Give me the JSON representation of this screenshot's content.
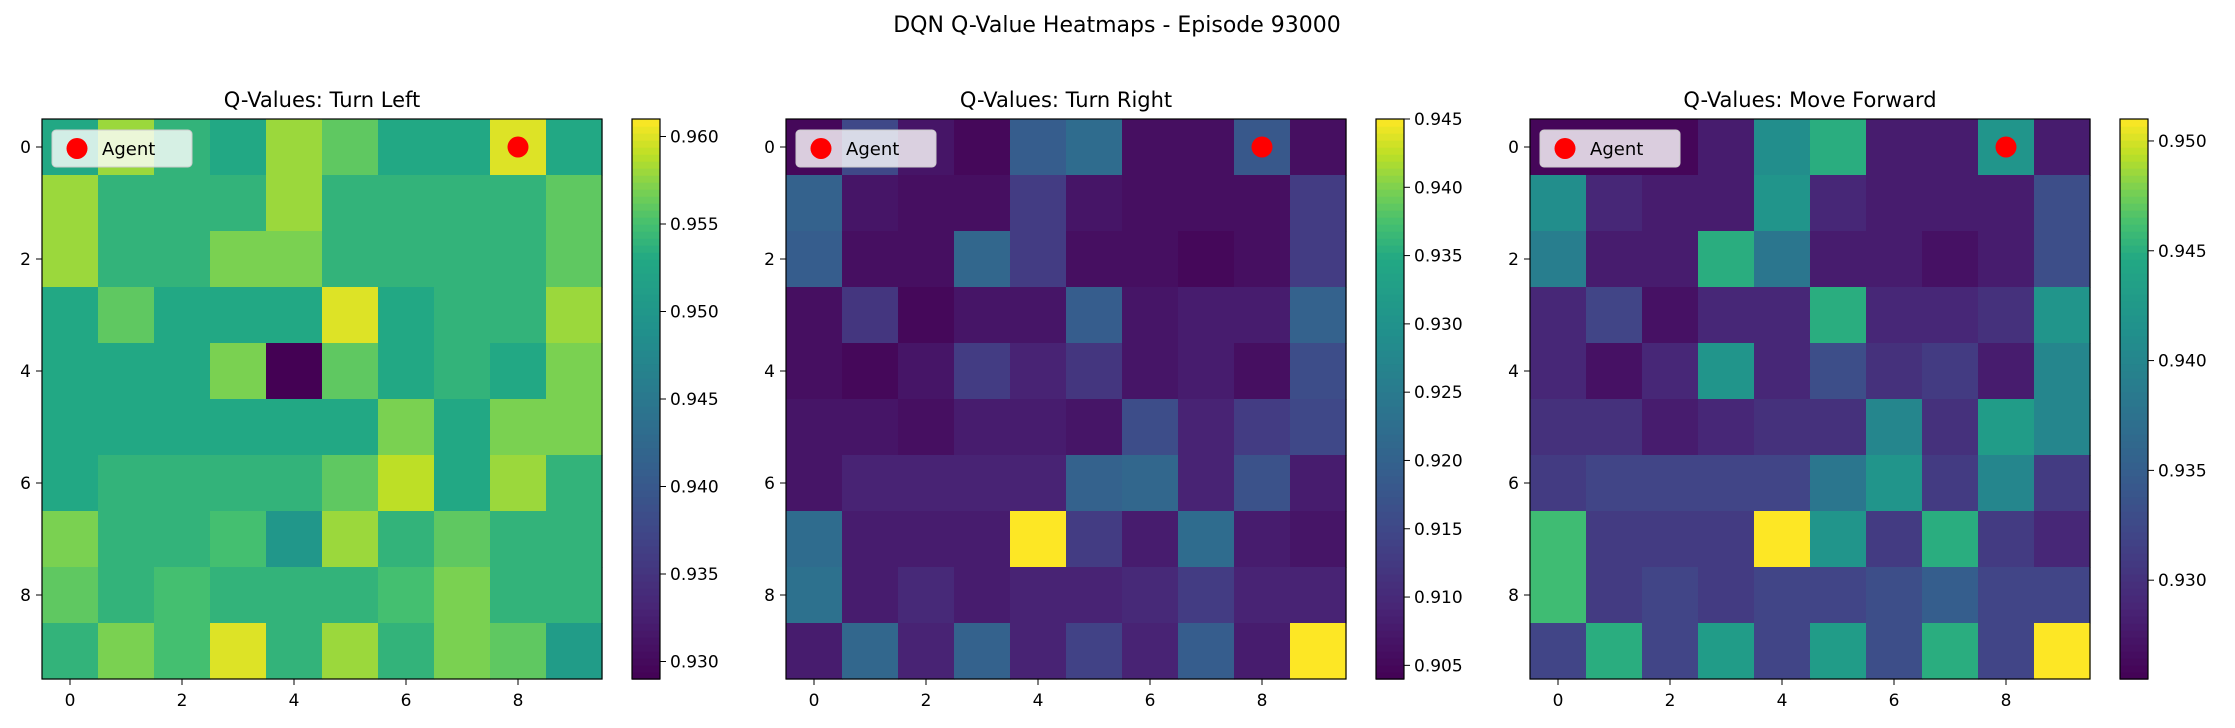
{
  "suptitle": "DQN Q-Value Heatmaps - Episode 93000",
  "colormap": "viridis",
  "agent_color": "#ff0000",
  "legend_location": "upper-left",
  "chart_data": [
    {
      "type": "heatmap",
      "title": "Q-Values: Turn Left",
      "x_ticks": [
        "0",
        "2",
        "4",
        "6",
        "8"
      ],
      "y_ticks": [
        "0",
        "2",
        "4",
        "6",
        "8"
      ],
      "colorbar": {
        "min": 0.929,
        "max": 0.961,
        "ticks": [
          "0.930",
          "0.935",
          "0.940",
          "0.945",
          "0.950",
          "0.955",
          "0.960"
        ]
      },
      "legend": [
        "Agent"
      ],
      "agent": {
        "x": 8,
        "y": 0
      },
      "values": [
        [
          0.953,
          0.958,
          0.954,
          0.953,
          0.958,
          0.956,
          0.953,
          0.953,
          0.96,
          0.953
        ],
        [
          0.958,
          0.954,
          0.954,
          0.954,
          0.958,
          0.954,
          0.954,
          0.954,
          0.954,
          0.956
        ],
        [
          0.958,
          0.954,
          0.954,
          0.957,
          0.957,
          0.954,
          0.954,
          0.954,
          0.954,
          0.956
        ],
        [
          0.953,
          0.956,
          0.953,
          0.953,
          0.953,
          0.96,
          0.953,
          0.954,
          0.954,
          0.958
        ],
        [
          0.953,
          0.953,
          0.953,
          0.957,
          0.929,
          0.956,
          0.953,
          0.954,
          0.953,
          0.957
        ],
        [
          0.953,
          0.953,
          0.953,
          0.953,
          0.953,
          0.953,
          0.957,
          0.953,
          0.957,
          0.957
        ],
        [
          0.953,
          0.954,
          0.954,
          0.954,
          0.954,
          0.956,
          0.959,
          0.953,
          0.958,
          0.954
        ],
        [
          0.957,
          0.954,
          0.954,
          0.955,
          0.95,
          0.958,
          0.954,
          0.956,
          0.954,
          0.954
        ],
        [
          0.956,
          0.954,
          0.955,
          0.954,
          0.954,
          0.954,
          0.955,
          0.957,
          0.954,
          0.954
        ],
        [
          0.954,
          0.957,
          0.955,
          0.96,
          0.954,
          0.958,
          0.954,
          0.957,
          0.956,
          0.951
        ]
      ]
    },
    {
      "type": "heatmap",
      "title": "Q-Values: Turn Right",
      "x_ticks": [
        "0",
        "2",
        "4",
        "6",
        "8"
      ],
      "y_ticks": [
        "0",
        "2",
        "4",
        "6",
        "8"
      ],
      "colorbar": {
        "min": 0.904,
        "max": 0.945,
        "ticks": [
          "0.905",
          "0.910",
          "0.915",
          "0.920",
          "0.925",
          "0.930",
          "0.935",
          "0.940",
          "0.945"
        ]
      },
      "legend": [
        "Agent"
      ],
      "agent": {
        "x": 8,
        "y": 0
      },
      "values": [
        [
          0.905,
          0.915,
          0.907,
          0.905,
          0.919,
          0.922,
          0.906,
          0.906,
          0.918,
          0.906
        ],
        [
          0.92,
          0.907,
          0.906,
          0.906,
          0.913,
          0.907,
          0.906,
          0.906,
          0.906,
          0.913
        ],
        [
          0.919,
          0.906,
          0.906,
          0.921,
          0.913,
          0.906,
          0.906,
          0.905,
          0.906,
          0.913
        ],
        [
          0.906,
          0.912,
          0.905,
          0.907,
          0.907,
          0.919,
          0.907,
          0.908,
          0.908,
          0.92
        ],
        [
          0.906,
          0.905,
          0.907,
          0.913,
          0.909,
          0.912,
          0.907,
          0.908,
          0.906,
          0.916
        ],
        [
          0.907,
          0.907,
          0.906,
          0.908,
          0.908,
          0.907,
          0.916,
          0.909,
          0.913,
          0.915
        ],
        [
          0.907,
          0.909,
          0.909,
          0.909,
          0.909,
          0.92,
          0.921,
          0.909,
          0.917,
          0.908
        ],
        [
          0.922,
          0.908,
          0.908,
          0.908,
          0.945,
          0.913,
          0.908,
          0.922,
          0.908,
          0.907
        ],
        [
          0.923,
          0.908,
          0.91,
          0.908,
          0.909,
          0.909,
          0.91,
          0.913,
          0.909,
          0.909
        ],
        [
          0.908,
          0.921,
          0.909,
          0.92,
          0.909,
          0.914,
          0.909,
          0.919,
          0.908,
          0.945
        ]
      ]
    },
    {
      "type": "heatmap",
      "title": "Q-Values: Move Forward",
      "x_ticks": [
        "0",
        "2",
        "4",
        "6",
        "8"
      ],
      "y_ticks": [
        "0",
        "2",
        "4",
        "6",
        "8"
      ],
      "colorbar": {
        "min": 0.9255,
        "max": 0.951,
        "ticks": [
          "0.930",
          "0.935",
          "0.940",
          "0.945",
          "0.950"
        ]
      },
      "legend": [
        "Agent"
      ],
      "agent": {
        "x": 8,
        "y": 0
      },
      "values": [
        [
          0.926,
          0.926,
          0.926,
          0.928,
          0.941,
          0.945,
          0.928,
          0.928,
          0.942,
          0.928
        ],
        [
          0.941,
          0.929,
          0.928,
          0.928,
          0.942,
          0.929,
          0.928,
          0.928,
          0.928,
          0.933
        ],
        [
          0.939,
          0.928,
          0.928,
          0.945,
          0.938,
          0.928,
          0.928,
          0.927,
          0.928,
          0.933
        ],
        [
          0.929,
          0.932,
          0.927,
          0.929,
          0.929,
          0.945,
          0.929,
          0.929,
          0.93,
          0.942
        ],
        [
          0.929,
          0.927,
          0.929,
          0.942,
          0.929,
          0.933,
          0.93,
          0.931,
          0.928,
          0.94
        ],
        [
          0.93,
          0.93,
          0.928,
          0.929,
          0.93,
          0.93,
          0.94,
          0.93,
          0.943,
          0.94
        ],
        [
          0.931,
          0.932,
          0.932,
          0.932,
          0.932,
          0.938,
          0.942,
          0.931,
          0.94,
          0.931
        ],
        [
          0.946,
          0.931,
          0.931,
          0.931,
          0.951,
          0.942,
          0.931,
          0.945,
          0.931,
          0.929
        ],
        [
          0.946,
          0.931,
          0.932,
          0.931,
          0.932,
          0.932,
          0.933,
          0.935,
          0.932,
          0.932
        ],
        [
          0.932,
          0.945,
          0.932,
          0.943,
          0.932,
          0.943,
          0.933,
          0.945,
          0.932,
          0.951
        ]
      ]
    }
  ]
}
